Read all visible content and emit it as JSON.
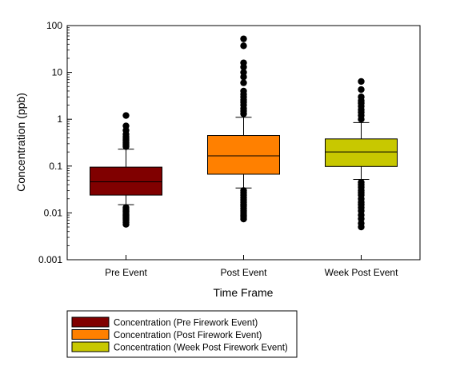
{
  "chart_data": {
    "type": "box",
    "xlabel": "Time Frame",
    "ylabel": "Concentration (ppb)",
    "yscale": "log",
    "ylim": [
      0.001,
      100
    ],
    "yticks": [
      {
        "value": 0.001,
        "label": "0.001"
      },
      {
        "value": 0.01,
        "label": "0.01"
      },
      {
        "value": 0.1,
        "label": "0.1"
      },
      {
        "value": 1,
        "label": "1"
      },
      {
        "value": 10,
        "label": "10"
      },
      {
        "value": 100,
        "label": "100"
      }
    ],
    "categories": [
      "Pre Event",
      "Post Event",
      "Week Post Event"
    ],
    "grid": false,
    "legend_position": "bottom-left",
    "series": [
      {
        "name": "Concentration  (Pre Firework Event)",
        "category": "Pre Event",
        "color": "#800000",
        "whisker_low": 0.015,
        "q1": 0.024,
        "median": 0.046,
        "q3": 0.095,
        "whisker_high": 0.23,
        "outliers_high": [
          0.26,
          0.28,
          0.3,
          0.32,
          0.35,
          0.38,
          0.42,
          0.48,
          0.58,
          0.72,
          1.2
        ],
        "outliers_low": [
          0.013,
          0.012,
          0.011,
          0.0105,
          0.0095,
          0.009,
          0.0085,
          0.008,
          0.0075,
          0.007,
          0.0063,
          0.0057
        ]
      },
      {
        "name": "Concentration (Post Firework Event)",
        "category": "Post Event",
        "color": "#ff8000",
        "whisker_low": 0.034,
        "q1": 0.067,
        "median": 0.165,
        "q3": 0.45,
        "whisker_high": 1.1,
        "outliers_high": [
          1.3,
          1.5,
          1.7,
          2.0,
          2.3,
          2.6,
          3.0,
          3.4,
          4.0,
          6.0,
          8.0,
          10.0,
          13.0,
          16.0,
          37.0,
          52.0
        ],
        "outliers_low": [
          0.03,
          0.027,
          0.024,
          0.021,
          0.019,
          0.017,
          0.015,
          0.014,
          0.0125,
          0.011,
          0.01,
          0.009,
          0.0082,
          0.0074
        ]
      },
      {
        "name": "Concentration (Week Post Firework Event)",
        "category": "Week Post Event",
        "color": "#c8c800",
        "whisker_low": 0.052,
        "q1": 0.098,
        "median": 0.2,
        "q3": 0.38,
        "whisker_high": 0.85,
        "outliers_high": [
          1.0,
          1.2,
          1.4,
          1.6,
          1.9,
          2.2,
          2.5,
          3.0,
          4.3,
          6.4
        ],
        "outliers_low": [
          0.045,
          0.04,
          0.035,
          0.03,
          0.027,
          0.024,
          0.02,
          0.017,
          0.015,
          0.013,
          0.011,
          0.009,
          0.0075,
          0.006,
          0.005
        ]
      }
    ]
  }
}
